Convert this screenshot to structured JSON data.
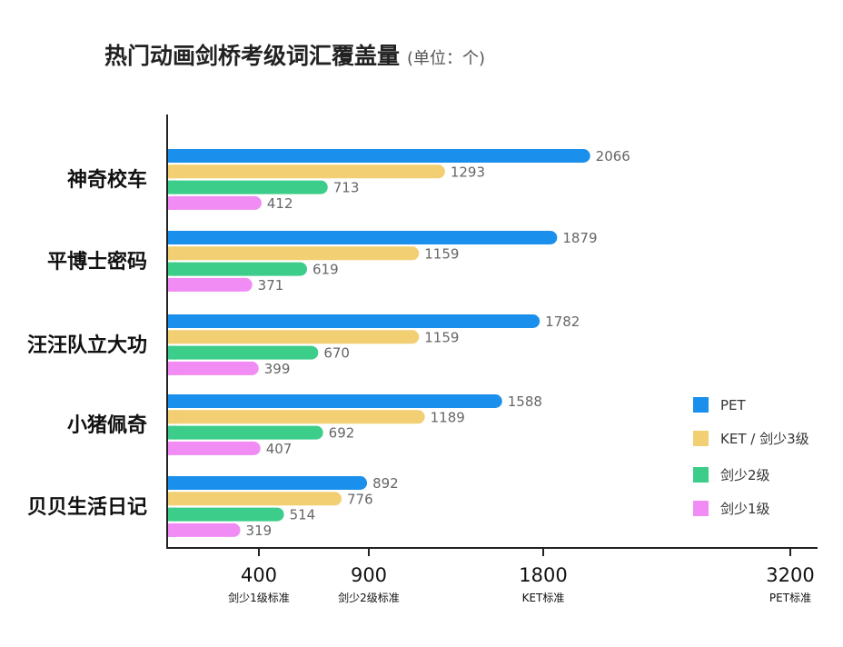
{
  "title": "热门动画剑桥考级词汇覆盖量",
  "unit": "(单位：个)",
  "chart_data": {
    "type": "bar",
    "orientation": "horizontal",
    "categories": [
      "神奇校车",
      "平博士密码",
      "汪汪队立大功",
      "小猪佩奇",
      "贝贝生活日记"
    ],
    "series": [
      {
        "name": "PET",
        "color": "#1a8fec",
        "values": [
          2066,
          1879,
          1782,
          1588,
          892
        ]
      },
      {
        "name": "KET / 剑少3级",
        "color": "#f3cf73",
        "values": [
          1293,
          1159,
          1159,
          1189,
          776
        ]
      },
      {
        "name": "剑少2级",
        "color": "#3ccd8a",
        "values": [
          713,
          619,
          670,
          692,
          514
        ]
      },
      {
        "name": "剑少1级",
        "color": "#f08cf4",
        "values": [
          412,
          371,
          399,
          407,
          319
        ]
      }
    ],
    "x_ticks": [
      {
        "value": 400,
        "label": "400",
        "sublabel": "剑少1级标准"
      },
      {
        "value": 900,
        "label": "900",
        "sublabel": "剑少2级标准"
      },
      {
        "value": 1800,
        "label": "1800",
        "sublabel": "KET标准"
      },
      {
        "value": 3200,
        "label": "3200",
        "sublabel": "PET标准"
      }
    ],
    "xlim": [
      0,
      3200
    ],
    "grid": false,
    "legend_position": "right"
  }
}
